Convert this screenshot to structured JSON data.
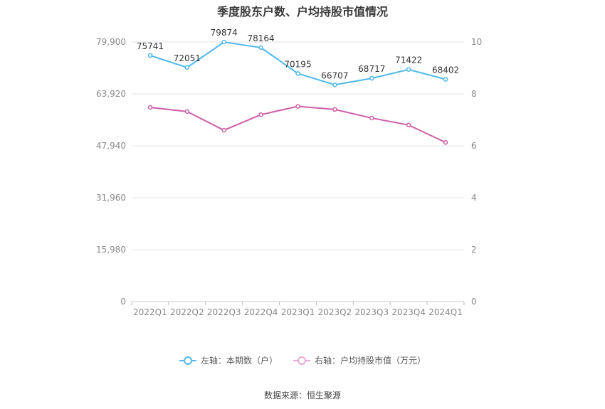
{
  "title": "季度股东户数、户均持股市值情况",
  "source": "数据来源：恒生聚源",
  "colors": {
    "left_series": "#4fb9ec",
    "right_series": "#cd5fa8",
    "grid": "#e3e3ee",
    "axis_text": "#888888"
  },
  "chart_data": {
    "type": "line",
    "categories": [
      "2022Q1",
      "2022Q2",
      "2022Q3",
      "2022Q4",
      "2023Q1",
      "2023Q2",
      "2023Q3",
      "2023Q4",
      "2024Q1"
    ],
    "left_axis": {
      "ylim": [
        0,
        79900
      ],
      "ticks": [
        0,
        15980,
        31960,
        47940,
        63920,
        79900
      ],
      "tick_labels": [
        "0",
        "15,980",
        "31,960",
        "47,940",
        "63,920",
        "79,900"
      ]
    },
    "right_axis": {
      "ylim": [
        0,
        10
      ],
      "ticks": [
        0,
        2,
        4,
        6,
        8,
        10
      ],
      "tick_labels": [
        "0",
        "2",
        "4",
        "6",
        "8",
        "10"
      ]
    },
    "series": [
      {
        "name": "左轴：本期数（户）",
        "axis": "left",
        "values": [
          75741,
          72051,
          79874,
          78164,
          70195,
          66707,
          68717,
          71422,
          68402
        ],
        "labels": [
          "75741",
          "72051",
          "79874",
          "78164",
          "70195",
          "66707",
          "68717",
          "71422",
          "68402"
        ]
      },
      {
        "name": "右轴：户均持股市值（万元）",
        "axis": "right",
        "values": [
          7.48,
          7.32,
          6.6,
          7.2,
          7.52,
          7.4,
          7.07,
          6.8,
          6.13
        ]
      }
    ],
    "grid": true,
    "legend_position": "bottom"
  }
}
